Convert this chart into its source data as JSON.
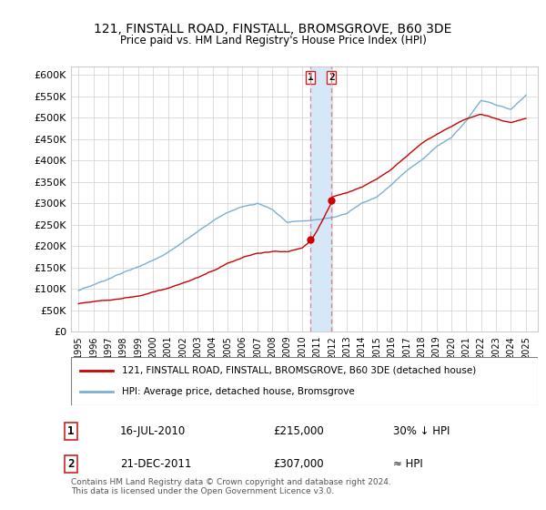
{
  "title": "121, FINSTALL ROAD, FINSTALL, BROMSGROVE, B60 3DE",
  "subtitle": "Price paid vs. HM Land Registry's House Price Index (HPI)",
  "hpi_color": "#7bafd4",
  "price_color": "#cc0000",
  "sale1_x": 2010.54,
  "sale1_y": 215000,
  "sale2_x": 2011.97,
  "sale2_y": 307000,
  "ylim": [
    0,
    620000
  ],
  "xlim": [
    1994.5,
    2025.8
  ],
  "yticks": [
    0,
    50000,
    100000,
    150000,
    200000,
    250000,
    300000,
    350000,
    400000,
    450000,
    500000,
    550000,
    600000
  ],
  "ytick_labels": [
    "£0",
    "£50K",
    "£100K",
    "£150K",
    "£200K",
    "£250K",
    "£300K",
    "£350K",
    "£400K",
    "£450K",
    "£500K",
    "£550K",
    "£600K"
  ],
  "xticks": [
    1995,
    1996,
    1997,
    1998,
    1999,
    2000,
    2001,
    2002,
    2003,
    2004,
    2005,
    2006,
    2007,
    2008,
    2009,
    2010,
    2011,
    2012,
    2013,
    2014,
    2015,
    2016,
    2017,
    2018,
    2019,
    2020,
    2021,
    2022,
    2023,
    2024,
    2025
  ],
  "legend_label_red": "121, FINSTALL ROAD, FINSTALL, BROMSGROVE, B60 3DE (detached house)",
  "legend_label_blue": "HPI: Average price, detached house, Bromsgrove",
  "annotation1_label": "1",
  "annotation1_date": "16-JUL-2010",
  "annotation1_price": "£215,000",
  "annotation1_hpi": "30% ↓ HPI",
  "annotation2_label": "2",
  "annotation2_date": "21-DEC-2011",
  "annotation2_price": "£307,000",
  "annotation2_hpi": "≈ HPI",
  "footer": "Contains HM Land Registry data © Crown copyright and database right 2024.\nThis data is licensed under the Open Government Licence v3.0.",
  "highlight_color": "#d6e8f7",
  "vline_color": "#e08080",
  "hpi_anchors_x": [
    1995,
    1996,
    1997,
    1998,
    1999,
    2000,
    2001,
    2002,
    2003,
    2004,
    2005,
    2006,
    2007,
    2008,
    2009,
    2010,
    2011,
    2012,
    2013,
    2014,
    2015,
    2016,
    2017,
    2018,
    2019,
    2020,
    2021,
    2022,
    2023,
    2024,
    2025
  ],
  "hpi_anchors_y": [
    95000,
    105000,
    118000,
    133000,
    148000,
    165000,
    185000,
    210000,
    232000,
    255000,
    272000,
    285000,
    292000,
    278000,
    248000,
    252000,
    258000,
    260000,
    270000,
    295000,
    310000,
    340000,
    375000,
    400000,
    430000,
    450000,
    490000,
    540000,
    530000,
    520000,
    555000
  ],
  "price_anchors_x": [
    1995,
    1996,
    1997,
    1998,
    1999,
    2000,
    2001,
    2002,
    2003,
    2004,
    2005,
    2006,
    2007,
    2008,
    2009,
    2010,
    2010.54,
    2011,
    2011.97,
    2012,
    2013,
    2014,
    2015,
    2016,
    2017,
    2018,
    2019,
    2020,
    2021,
    2022,
    2023,
    2024,
    2025
  ],
  "price_anchors_y": [
    65000,
    70000,
    75000,
    80000,
    85000,
    93000,
    103000,
    115000,
    128000,
    145000,
    162000,
    175000,
    185000,
    190000,
    190000,
    200000,
    215000,
    240000,
    307000,
    320000,
    330000,
    345000,
    365000,
    390000,
    420000,
    450000,
    470000,
    490000,
    510000,
    520000,
    510000,
    500000,
    510000
  ]
}
